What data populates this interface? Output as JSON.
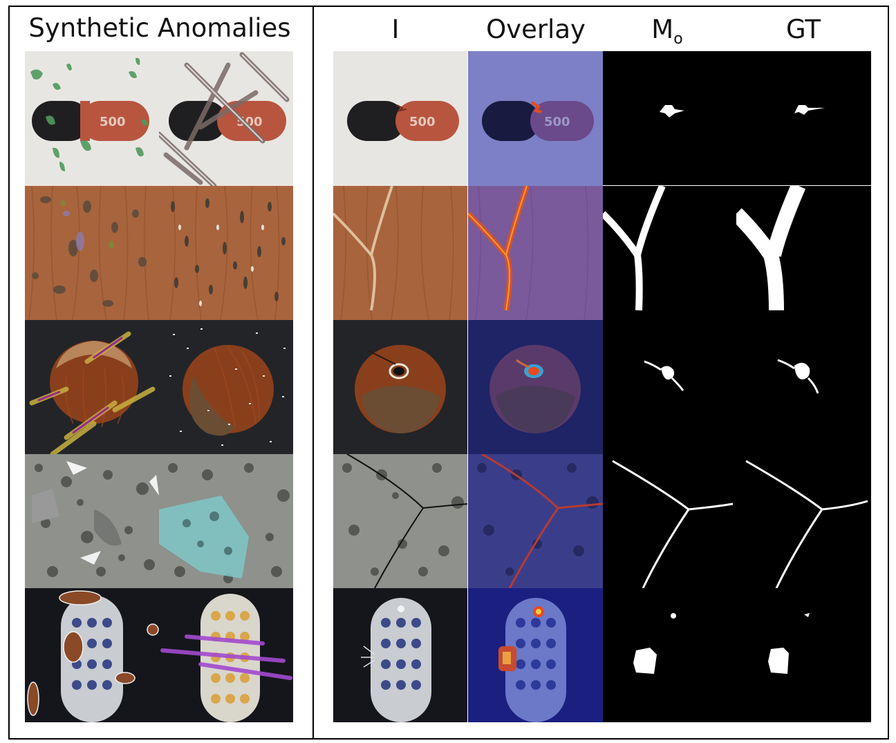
{
  "figure": {
    "left_panel": {
      "title": "Synthetic Anomalies"
    },
    "right_panel": {
      "columns": [
        {
          "label": "I",
          "sub": ""
        },
        {
          "label": "Overlay",
          "sub": ""
        },
        {
          "label": "M",
          "sub": "o"
        },
        {
          "label": "GT",
          "sub": ""
        }
      ]
    },
    "rows": [
      "capsule",
      "wood",
      "hazelnut",
      "tile",
      "toothbrush"
    ]
  },
  "colors": {
    "capsule_bg": "#e8e6e2",
    "capsule_dark": "#1f1f21",
    "capsule_orange": "#b8553f",
    "wood": "#a8643c",
    "nut": "#8a3f1c",
    "tile": "#8e918c",
    "heatmap_blue": "#3a35a8",
    "mask_white": "#ffffff"
  }
}
